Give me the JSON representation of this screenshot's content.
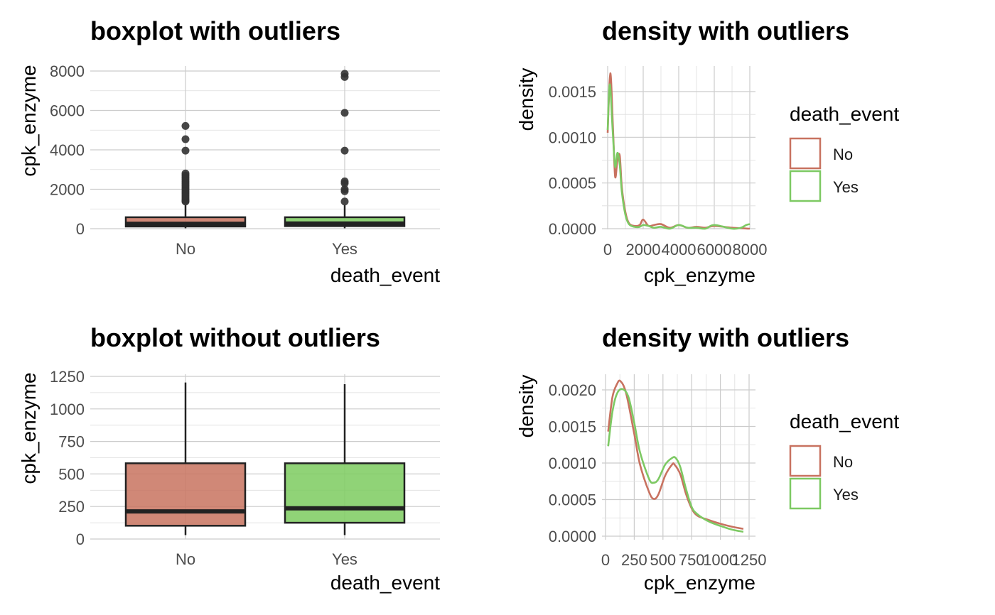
{
  "colors": {
    "No": "#c87260",
    "Yes": "#7dc963",
    "No_fill": "#c8735f",
    "Yes_fill": "#7ccb5f",
    "outlier": "#333333"
  },
  "legend": {
    "title": "death_event",
    "items": [
      "No",
      "Yes"
    ]
  },
  "chart_data": [
    {
      "type": "box",
      "title": "boxplot with outliers",
      "xlabel": "death_event",
      "ylabel": "cpk_enzyme",
      "categories": [
        "No",
        "Yes"
      ],
      "ylim": [
        0,
        8000
      ],
      "yticks": [
        0,
        2000,
        4000,
        6000,
        8000
      ],
      "boxes": [
        {
          "name": "No",
          "q1": 110,
          "median": 250,
          "q3": 580,
          "whisker_low": 23,
          "whisker_high": 1200,
          "outliers": [
            1380,
            1420,
            1500,
            1600,
            1700,
            1800,
            1900,
            2000,
            2100,
            2200,
            2300,
            2400,
            2500,
            2600,
            2700,
            2800,
            3960,
            4540,
            5210
          ]
        },
        {
          "name": "Yes",
          "q1": 130,
          "median": 260,
          "q3": 580,
          "whisker_low": 23,
          "whisker_high": 1200,
          "outliers": [
            1380,
            1900,
            2000,
            2300,
            2400,
            3960,
            5880,
            7700,
            7860
          ]
        }
      ]
    },
    {
      "type": "line",
      "title": "density with outliers",
      "xlabel": "cpk_enzyme",
      "ylabel": "density",
      "xlim": [
        0,
        8000
      ],
      "ylim": [
        0,
        0.0017
      ],
      "xticks": [
        0,
        2000,
        4000,
        6000,
        8000
      ],
      "yticks": [
        0.0,
        0.0005,
        0.001,
        0.0015
      ],
      "ytick_labels": [
        "0.0000",
        "0.0005",
        "0.0010",
        "0.0015"
      ],
      "series": [
        {
          "name": "No",
          "x": [
            0,
            150,
            300,
            420,
            550,
            680,
            800,
            1000,
            1200,
            1500,
            1800,
            2000,
            2300,
            2600,
            3000,
            3500,
            4000,
            4500,
            5000,
            5500,
            6000,
            7000,
            8000
          ],
          "y": [
            0.00105,
            0.0017,
            0.0011,
            0.00057,
            0.00075,
            0.0008,
            0.00045,
            0.00018,
            6e-05,
            3e-05,
            4e-05,
            0.0001,
            3e-05,
            4e-05,
            5e-05,
            1e-05,
            4e-05,
            1e-05,
            2e-05,
            1e-05,
            3e-05,
            1e-05,
            0.0
          ]
        },
        {
          "name": "Yes",
          "x": [
            0,
            120,
            280,
            420,
            550,
            680,
            800,
            1000,
            1200,
            1500,
            1800,
            2000,
            2300,
            2600,
            3000,
            3500,
            4000,
            4500,
            5000,
            5500,
            6000,
            7000,
            7500,
            7800,
            8000
          ],
          "y": [
            0.00108,
            0.00158,
            0.00108,
            0.00068,
            0.00083,
            0.0007,
            0.0004,
            0.00015,
            5e-05,
            2e-05,
            2e-05,
            4e-05,
            3e-05,
            1e-05,
            2e-05,
            0.0,
            4e-05,
            1e-05,
            1e-05,
            0.0,
            4e-05,
            0.0,
            1e-05,
            4e-05,
            5e-05
          ]
        }
      ]
    },
    {
      "type": "box",
      "title": "boxplot without outliers",
      "xlabel": "death_event",
      "ylabel": "cpk_enzyme",
      "categories": [
        "No",
        "Yes"
      ],
      "ylim": [
        0,
        1250
      ],
      "yticks": [
        0,
        250,
        500,
        750,
        1000,
        1250
      ],
      "boxes": [
        {
          "name": "No",
          "q1": 102,
          "median": 212,
          "q3": 582,
          "whisker_low": 30,
          "whisker_high": 1203,
          "outliers": []
        },
        {
          "name": "Yes",
          "q1": 125,
          "median": 236,
          "q3": 582,
          "whisker_low": 30,
          "whisker_high": 1190,
          "outliers": []
        }
      ]
    },
    {
      "type": "line",
      "title": "density with outliers",
      "xlabel": "cpk_enzyme",
      "ylabel": "density",
      "xlim": [
        0,
        1250
      ],
      "ylim": [
        0,
        0.0021
      ],
      "xticks": [
        0,
        250,
        500,
        750,
        1000,
        1250
      ],
      "yticks": [
        0.0,
        0.0005,
        0.001,
        0.0015,
        0.002
      ],
      "ytick_labels": [
        "0.0000",
        "0.0005",
        "0.0010",
        "0.0015",
        "0.0020"
      ],
      "series": [
        {
          "name": "No",
          "x": [
            23,
            60,
            100,
            130,
            180,
            250,
            300,
            380,
            420,
            460,
            520,
            580,
            600,
            650,
            700,
            750,
            800,
            900,
            1000,
            1100,
            1200
          ],
          "y": [
            0.00143,
            0.0019,
            0.00208,
            0.00212,
            0.00195,
            0.0014,
            0.00098,
            0.0006,
            0.00051,
            0.00057,
            0.00083,
            0.00098,
            0.00098,
            0.00085,
            0.00058,
            0.00038,
            0.00028,
            0.00022,
            0.00017,
            0.00013,
            0.0001
          ]
        },
        {
          "name": "Yes",
          "x": [
            23,
            60,
            100,
            150,
            200,
            250,
            300,
            380,
            420,
            460,
            520,
            580,
            610,
            650,
            700,
            750,
            800,
            900,
            1000,
            1100,
            1200
          ],
          "y": [
            0.00123,
            0.0017,
            0.00195,
            0.00201,
            0.0019,
            0.00155,
            0.00115,
            0.00078,
            0.00073,
            0.00078,
            0.00098,
            0.00107,
            0.00107,
            0.00095,
            0.00065,
            0.0004,
            0.0003,
            0.0002,
            0.00014,
            9e-05,
            6e-05
          ]
        }
      ]
    }
  ]
}
